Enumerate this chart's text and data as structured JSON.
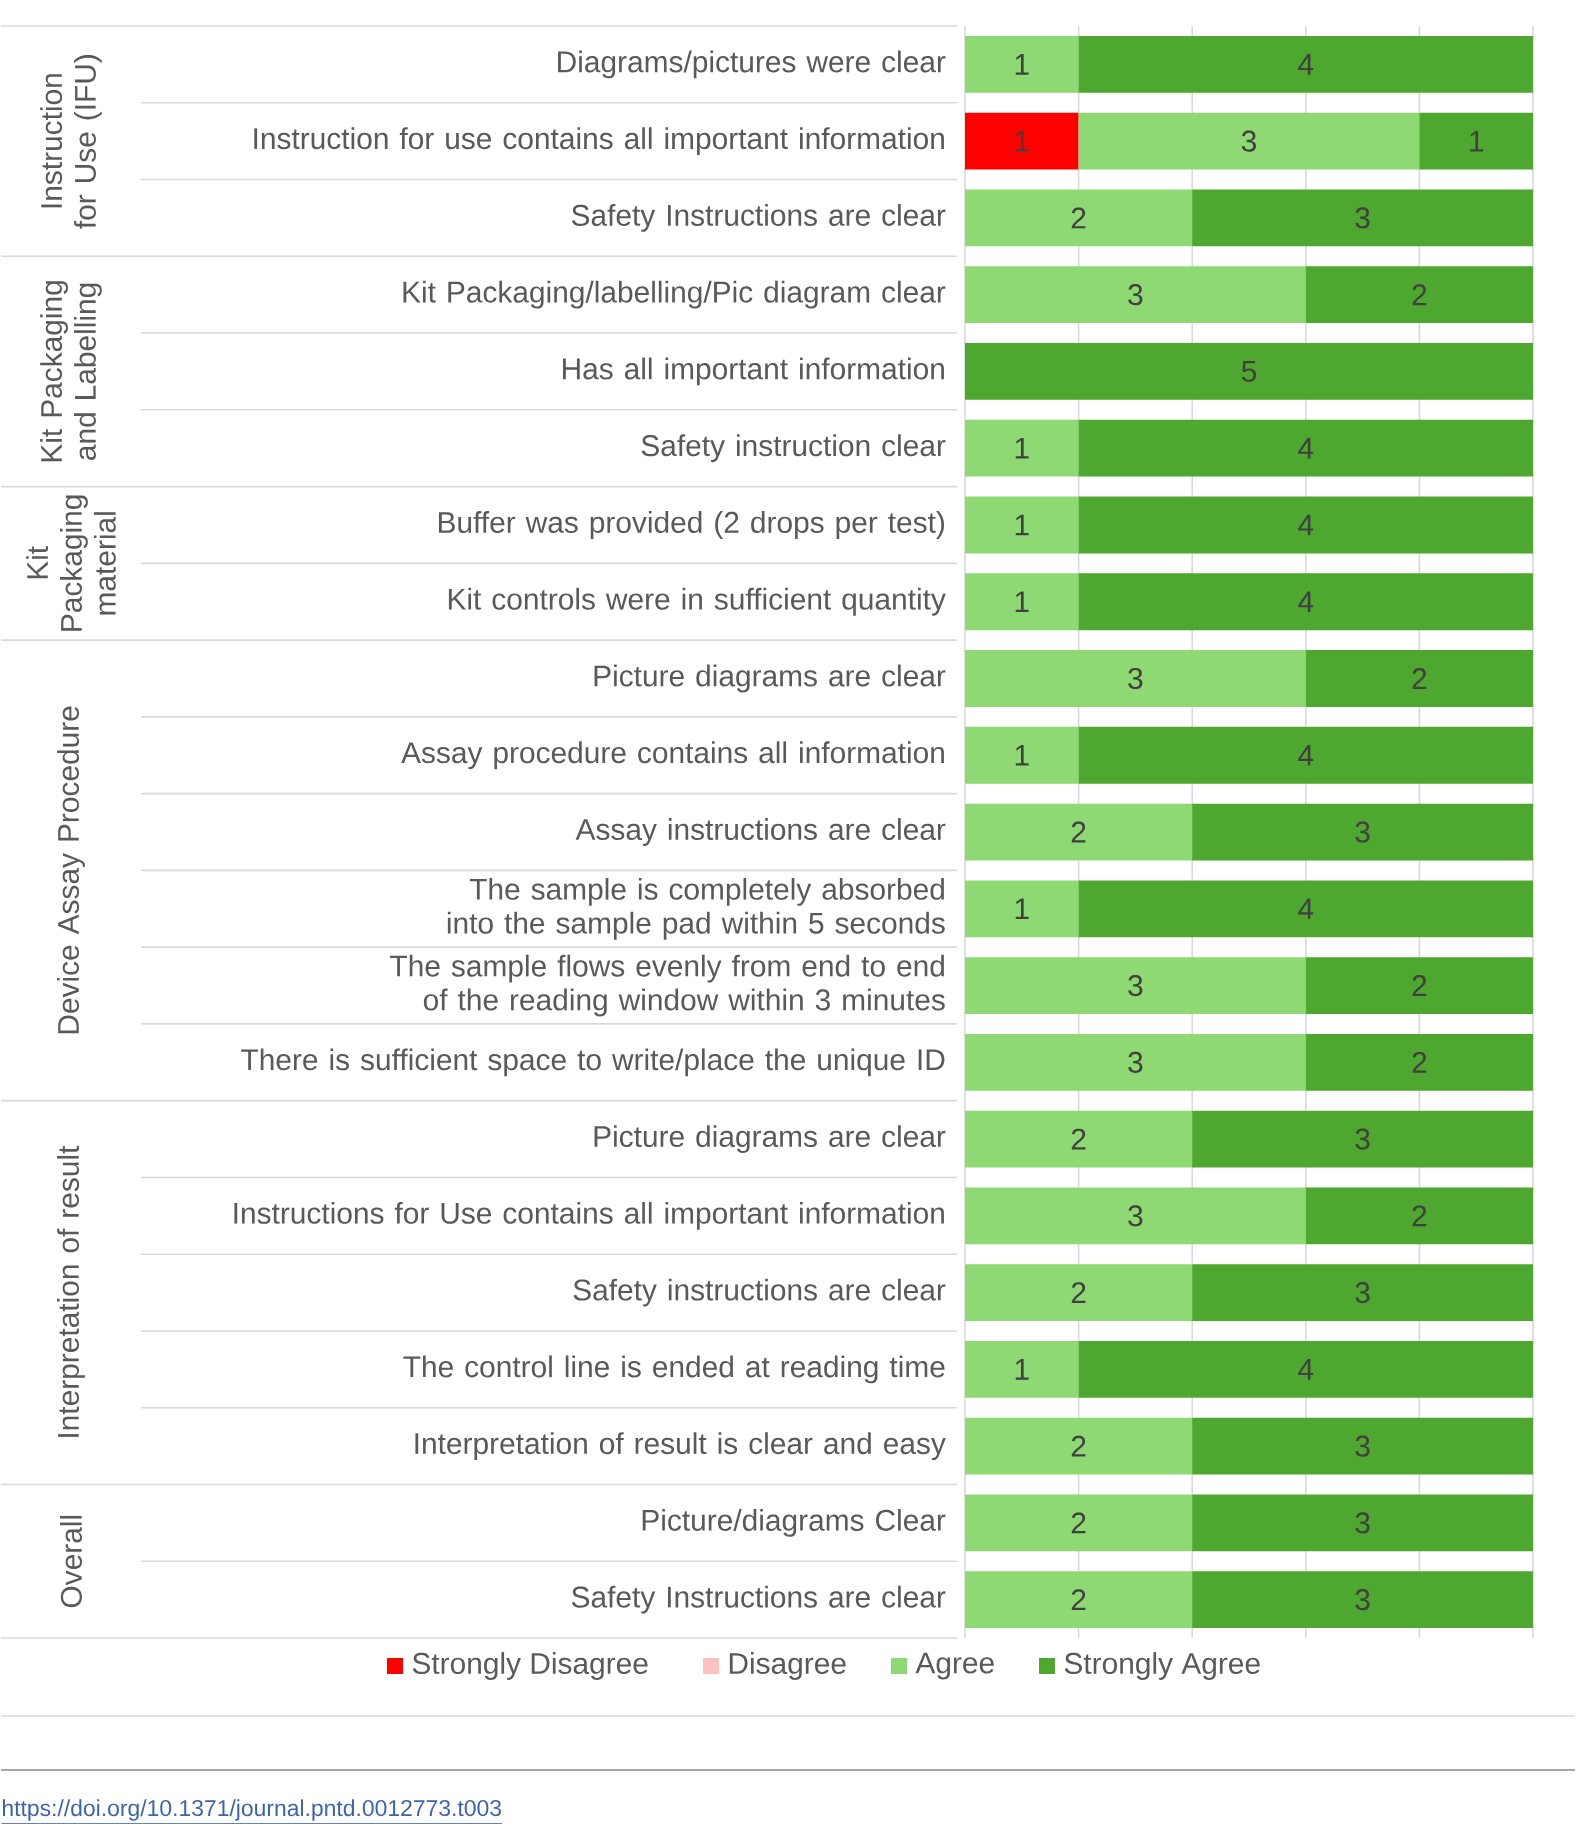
{
  "chart_data": {
    "type": "bar",
    "orientation": "horizontal",
    "stacked": true,
    "data_labels": true,
    "grid": "x",
    "legend": "bottom",
    "tick_labels": "y",
    "xlim": [
      0,
      5
    ],
    "categories": [
      "Diagrams/pictures were clear",
      "Instruction for use contains all important information",
      "Safety Instructions are clear",
      "Kit Packaging/labelling/Pic diagram clear",
      "Has all important information",
      "Safety instruction clear",
      "Buffer was provided (2 drops per test)",
      "Kit controls were in sufficient quantity",
      "Picture diagrams are clear",
      "Assay procedure contains all information",
      "Assay instructions are clear",
      "The sample is completely absorbed into the sample pad within 5 seconds",
      "The sample flows evenly from end to end of the reading window within 3 minutes",
      "There is sufficient space to write/place the unique ID",
      "Picture diagrams are clear",
      "Instructions for Use contains all important information",
      "Safety instructions are clear",
      "The control line is ended at reading time",
      "Interpretation of result is clear and easy",
      "Picture/diagrams Clear",
      "Safety Instructions are clear"
    ],
    "series": [
      {
        "name": "Strongly Disagree",
        "color": "#ff0000",
        "values": [
          null,
          1,
          null,
          null,
          null,
          null,
          null,
          null,
          null,
          null,
          null,
          null,
          null,
          null,
          null,
          null,
          null,
          null,
          null,
          null,
          null
        ]
      },
      {
        "name": "Disagree",
        "color": "#ffc1c1",
        "values": [
          null,
          null,
          null,
          null,
          null,
          null,
          null,
          null,
          null,
          null,
          null,
          null,
          null,
          null,
          null,
          null,
          null,
          null,
          null,
          null,
          null
        ]
      },
      {
        "name": "Agree",
        "color": "#8ed973",
        "values": [
          1,
          3,
          2,
          3,
          null,
          1,
          1,
          1,
          3,
          1,
          2,
          1,
          3,
          3,
          2,
          3,
          2,
          1,
          2,
          2,
          2
        ]
      },
      {
        "name": "Strongly Agree",
        "color": "#4ea72e",
        "values": [
          4,
          1,
          3,
          2,
          5,
          4,
          4,
          4,
          2,
          4,
          3,
          4,
          2,
          2,
          3,
          2,
          3,
          4,
          3,
          3,
          3
        ]
      }
    ],
    "annotations": [
      "Instruction for Use (IFU)",
      "Kit Packaging and Labelling",
      "Kit Packaging material",
      "Device Assay Procedure",
      "Interpretation of result",
      "Overall",
      "https://doi.org/10.1371/journal.pntd.0012773.t003"
    ]
  }
}
